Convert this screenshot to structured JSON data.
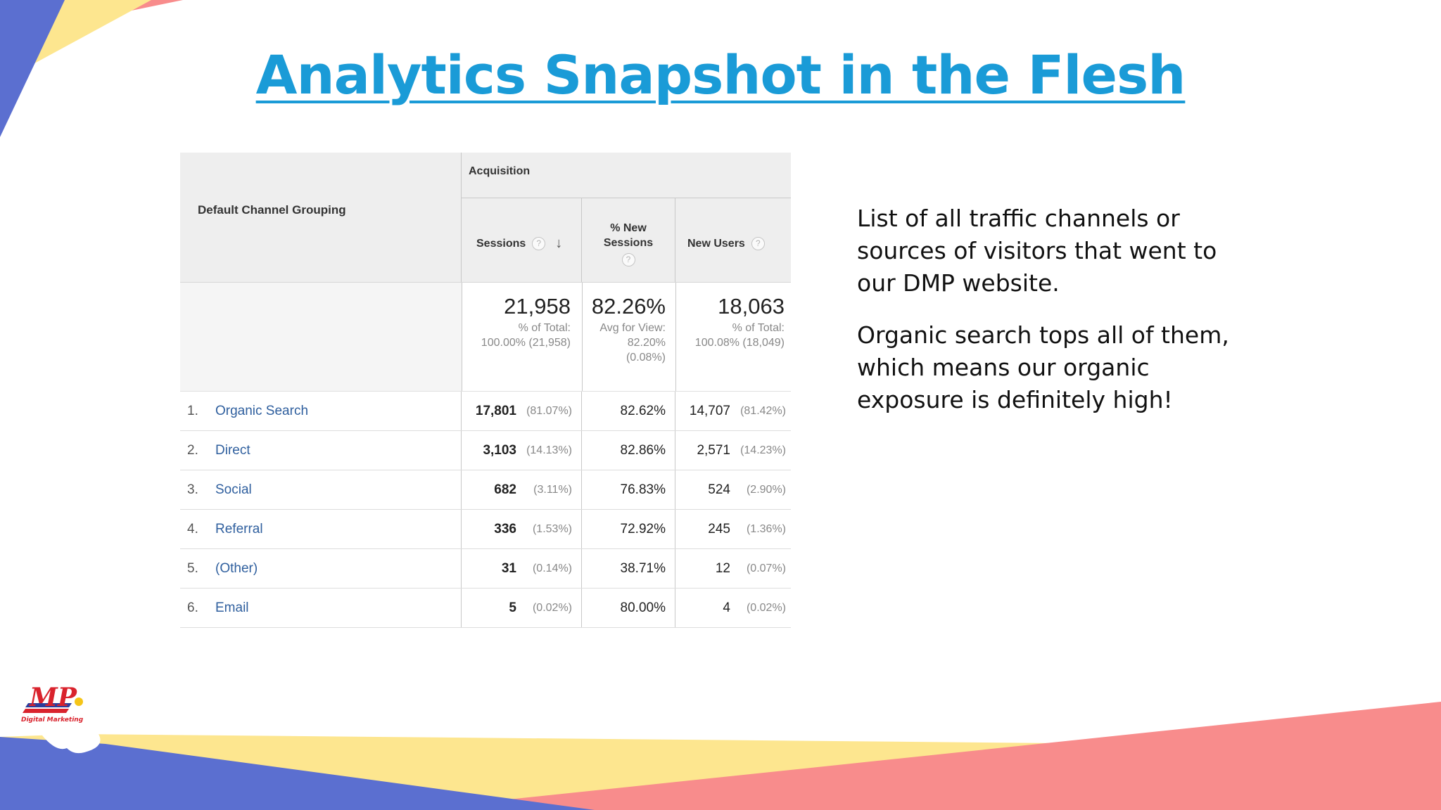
{
  "slide": {
    "title": "Analytics Snapshot in the Flesh",
    "body_paragraphs": [
      "List of all traffic channels or sources of visitors that went to our DMP website.",
      "Organic search tops all of them, which means our organic exposure is definitely high!"
    ],
    "colors": {
      "title": "#1a9bd7",
      "deco_blue": "#5b6fd0",
      "deco_yellow": "#fde68f",
      "deco_pink": "#f88c8c"
    }
  },
  "report": {
    "dimension_header": "Default Channel Grouping",
    "group_header": "Acquisition",
    "columns": {
      "sessions": "Sessions",
      "pct_new_line1": "% New",
      "pct_new_line2": "Sessions",
      "new_users": "New Users"
    },
    "help_icon": "?",
    "sort_icon": "↓",
    "totals": {
      "sessions": "21,958",
      "sessions_sub1": "% of Total:",
      "sessions_sub2": "100.00% (21,958)",
      "pct_new": "82.26%",
      "pct_new_sub1": "Avg for View:",
      "pct_new_sub2": "82.20%",
      "pct_new_sub3": "(0.08%)",
      "new_users": "18,063",
      "new_users_sub1": "% of Total:",
      "new_users_sub2": "100.08% (18,049)"
    },
    "rows": [
      {
        "num": "1.",
        "channel": "Organic Search",
        "sessions": "17,801",
        "sessions_share": "(81.07%)",
        "pct_new": "82.62%",
        "new_users": "14,707",
        "new_users_share": "(81.42%)"
      },
      {
        "num": "2.",
        "channel": "Direct",
        "sessions": "3,103",
        "sessions_share": "(14.13%)",
        "pct_new": "82.86%",
        "new_users": "2,571",
        "new_users_share": "(14.23%)"
      },
      {
        "num": "3.",
        "channel": "Social",
        "sessions": "682",
        "sessions_share": "(3.11%)",
        "pct_new": "76.83%",
        "new_users": "524",
        "new_users_share": "(2.90%)"
      },
      {
        "num": "4.",
        "channel": "Referral",
        "sessions": "336",
        "sessions_share": "(1.53%)",
        "pct_new": "72.92%",
        "new_users": "245",
        "new_users_share": "(1.36%)"
      },
      {
        "num": "5.",
        "channel": "(Other)",
        "sessions": "31",
        "sessions_share": "(0.14%)",
        "pct_new": "38.71%",
        "new_users": "12",
        "new_users_share": "(0.07%)"
      },
      {
        "num": "6.",
        "channel": "Email",
        "sessions": "5",
        "sessions_share": "(0.02%)",
        "pct_new": "80.00%",
        "new_users": "4",
        "new_users_share": "(0.02%)"
      }
    ]
  },
  "logo": {
    "mark": "MP",
    "caption": "Digital Marketing"
  }
}
